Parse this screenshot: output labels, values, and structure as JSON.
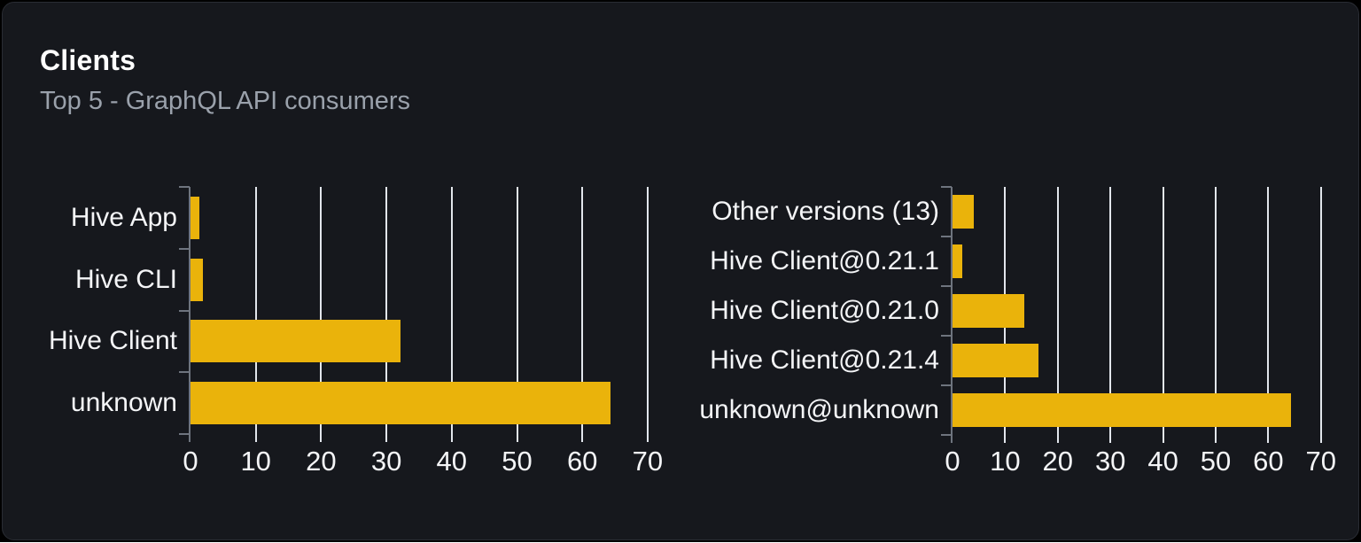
{
  "panel": {
    "title": "Clients",
    "subtitle": "Top 5 - GraphQL API consumers"
  },
  "colors": {
    "bar": "#eab30b",
    "page_background": "#000000",
    "panel_background": "#16181d",
    "panel_border": "#292c33",
    "gridline": "#e2e6ec",
    "axis": "#6e747e",
    "title_text": "#ffffff",
    "subtitle_text": "#9aa1ab",
    "category_label_text": "#f4f5f7",
    "tick_label_text": "#f4f5f7"
  },
  "chart_data": [
    {
      "type": "bar",
      "orientation": "horizontal",
      "name": "clients-by-name",
      "categories": [
        "Hive App",
        "Hive CLI",
        "Hive Client",
        "unknown"
      ],
      "values": [
        1.3,
        1.9,
        32.2,
        64.3
      ],
      "xticks": [
        0,
        10,
        20,
        30,
        40,
        50,
        60,
        70
      ],
      "xlim": [
        0,
        75
      ],
      "grid": true,
      "legend": false,
      "title": "",
      "xlabel": "",
      "ylabel": ""
    },
    {
      "type": "bar",
      "orientation": "horizontal",
      "name": "clients-by-version",
      "categories": [
        "Other versions (13)",
        "Hive Client@0.21.1",
        "Hive Client@0.21.0",
        "Hive Client@0.21.4",
        "unknown@unknown"
      ],
      "values": [
        4.0,
        1.8,
        13.6,
        16.4,
        64.3
      ],
      "xticks": [
        0,
        10,
        20,
        30,
        40,
        50,
        60,
        70
      ],
      "xlim": [
        0,
        75
      ],
      "grid": true,
      "legend": false,
      "title": "",
      "xlabel": "",
      "ylabel": ""
    }
  ]
}
